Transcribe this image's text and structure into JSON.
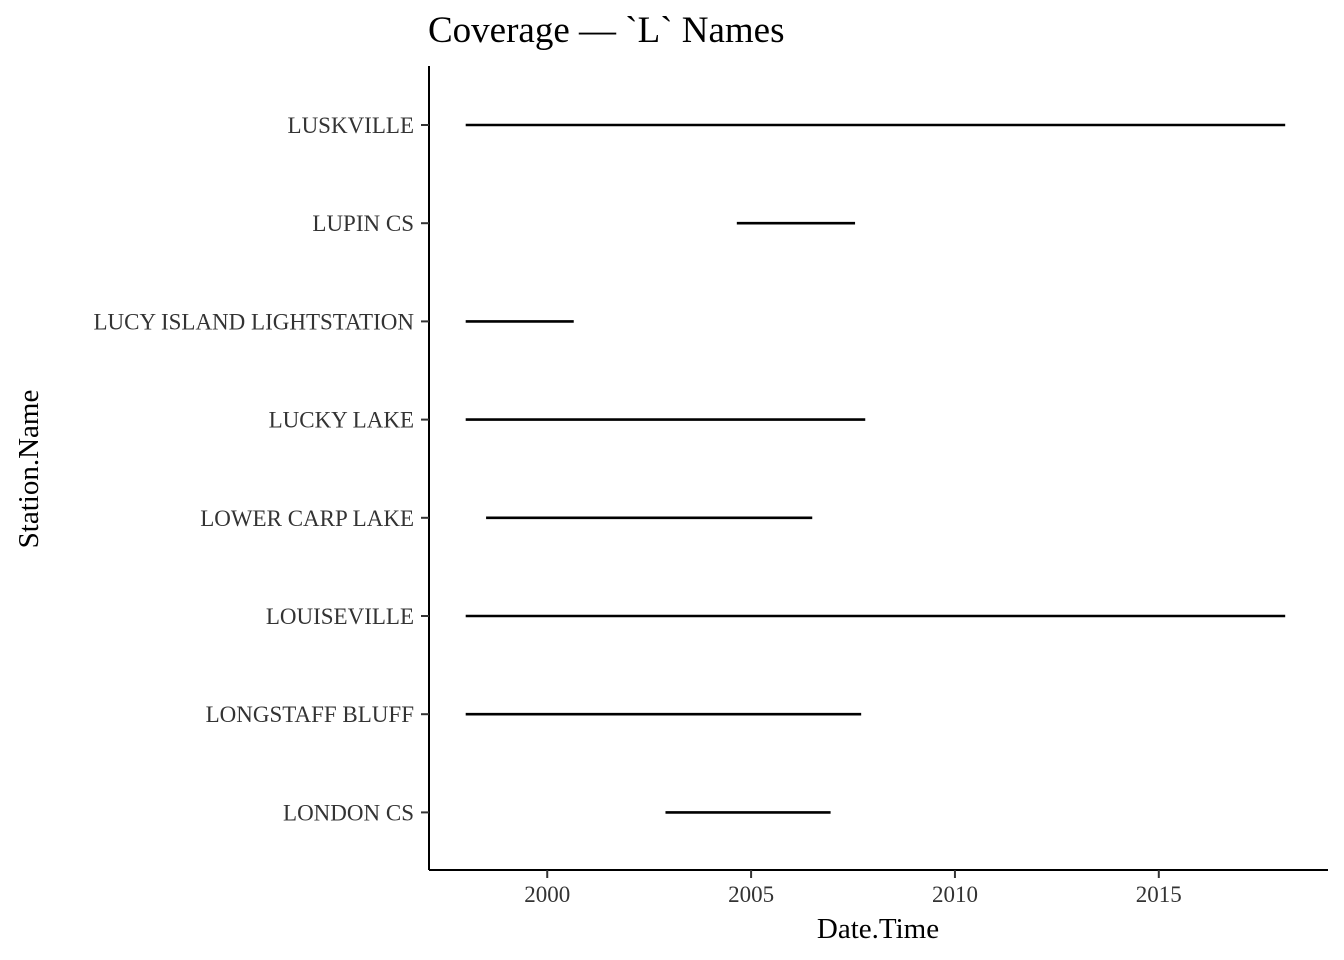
{
  "chart_data": {
    "type": "line",
    "title": "Coverage — `L` Names",
    "xlabel": "Date.Time",
    "ylabel": "Station.Name",
    "x_ticks": [
      2000,
      2005,
      2010,
      2015
    ],
    "xlim": [
      1997.1,
      2019.15
    ],
    "grid": false,
    "legend": "none",
    "line_color": "#000000",
    "series": [
      {
        "name": "LONDON CS",
        "start": 2002.9,
        "end": 2006.95
      },
      {
        "name": "LONGSTAFF BLUFF",
        "start": 1998.0,
        "end": 2007.7
      },
      {
        "name": "LOUISEVILLE",
        "start": 1998.0,
        "end": 2018.1
      },
      {
        "name": "LOWER CARP LAKE",
        "start": 1998.5,
        "end": 2006.5
      },
      {
        "name": "LUCKY LAKE",
        "start": 1998.0,
        "end": 2007.8
      },
      {
        "name": "LUCY ISLAND LIGHTSTATION",
        "start": 1998.0,
        "end": 2000.65
      },
      {
        "name": "LUPIN CS",
        "start": 2004.65,
        "end": 2007.55
      },
      {
        "name": "LUSKVILLE",
        "start": 1998.0,
        "end": 2018.1
      }
    ]
  }
}
